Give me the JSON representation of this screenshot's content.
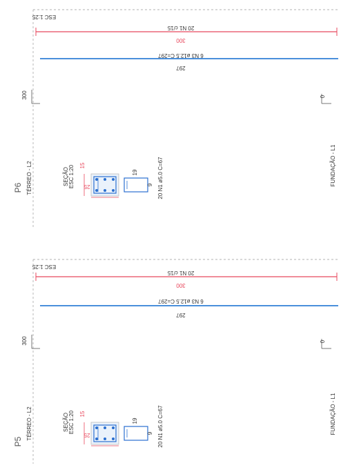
{
  "colors": {
    "red": "#e8475c",
    "blue": "#2f7fd6",
    "dark": "#333333",
    "section": "#2a6fd0"
  },
  "sheets": [
    {
      "id": "p6",
      "pillar_label": "P6",
      "scale_top": "ESC 1:25",
      "stirrup_callout": "20 N1 c/15",
      "stirrup_dim": "300",
      "bar_callout": "6 N3 ø12.5 C=297",
      "bar_dim": "297",
      "level_top_mark": "300",
      "level_bottom_mark": "0",
      "level_top_name": "TÉRREO - L2",
      "level_bottom_name": "FUNDAÇÃO - L1",
      "section_title": "SEÇÃO",
      "section_scale": "ESC 1:20",
      "section_width": "25",
      "section_height": "15",
      "stirrup_width": "19",
      "stirrup_height": "9",
      "stirrup_spec": "20 N1 ø5.0 C=67"
    },
    {
      "id": "p5",
      "pillar_label": "P5",
      "scale_top": "ESC 1:25",
      "stirrup_callout": "20 N1 c/15",
      "stirrup_dim": "300",
      "bar_callout": "6 N3 ø12.5 C=297",
      "bar_dim": "297",
      "level_top_mark": "300",
      "level_bottom_mark": "0",
      "level_top_name": "TÉRREO - L2",
      "level_bottom_name": "FUNDAÇÃO - L1",
      "section_title": "SEÇÃO",
      "section_scale": "ESC 1:20",
      "section_width": "25",
      "section_height": "15",
      "stirrup_width": "19",
      "stirrup_height": "9",
      "stirrup_spec": "20 N1 ø5.0 C=67"
    }
  ]
}
